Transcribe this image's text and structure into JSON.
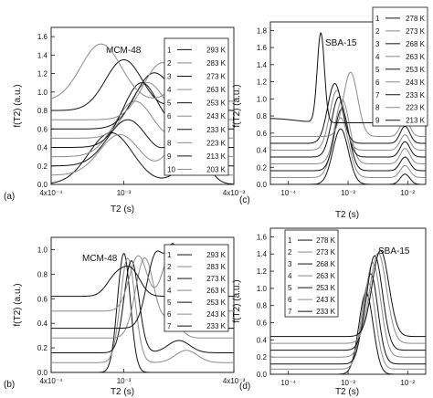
{
  "figure": {
    "chart_data": [
      {
        "type": "line",
        "panel_label": "(a)",
        "title": "MCM-48",
        "xlabel": "T2  (s)",
        "ylabel": "f(T2)  (a.u.)",
        "x_scale": "log",
        "xlim": [
          0.0004,
          0.004
        ],
        "ylim": [
          0.0,
          1.7
        ],
        "x_ticks": [
          0.0004,
          0.001,
          0.004
        ],
        "x_tick_labels": [
          "4x10⁻⁴",
          "10⁻³",
          "4x10⁻³"
        ],
        "y_ticks": [
          0.0,
          0.2,
          0.4,
          0.6,
          0.8,
          1.0,
          1.2,
          1.4,
          1.6
        ],
        "y_tick_labels": [
          "0.0",
          "0.2",
          "0.4",
          "0.6",
          "0.8",
          "1.0",
          "1.2",
          "1.4",
          "1.6"
        ],
        "legend_position": "top-right",
        "series": [
          {
            "id": "1",
            "label": "293 K",
            "offset": 0.0,
            "peaks": [
              [
                0.00085,
                0.56,
                0.12
              ],
              [
                0.0023,
                0.2,
                0.08
              ],
              [
                0.0027,
                0.12,
                0.05
              ]
            ]
          },
          {
            "id": "2",
            "label": "283 K",
            "offset": 0.1,
            "peaks": [
              [
                0.00095,
                0.44,
                0.11
              ],
              [
                0.002,
                0.34,
                0.07
              ],
              [
                0.0026,
                0.1,
                0.05
              ]
            ]
          },
          {
            "id": "3",
            "label": "273 K",
            "offset": 0.2,
            "peaks": [
              [
                0.00105,
                0.5,
                0.11
              ],
              [
                0.0021,
                0.3,
                0.07
              ],
              [
                0.0026,
                0.12,
                0.05
              ]
            ]
          },
          {
            "id": "4",
            "label": "263 K",
            "offset": 0.3,
            "peaks": [
              [
                0.00115,
                0.6,
                0.11
              ],
              [
                0.0022,
                0.2,
                0.08
              ],
              [
                0.0027,
                0.14,
                0.05
              ]
            ]
          },
          {
            "id": "5",
            "label": "253 K",
            "offset": 0.4,
            "peaks": [
              [
                0.00125,
                0.7,
                0.1
              ],
              [
                0.0022,
                0.22,
                0.07
              ]
            ]
          },
          {
            "id": "6",
            "label": "243 K",
            "offset": 0.5,
            "peaks": [
              [
                0.00135,
                0.6,
                0.1
              ],
              [
                0.0023,
                0.25,
                0.07
              ]
            ]
          },
          {
            "id": "7",
            "label": "233 K",
            "offset": 0.6,
            "peaks": [
              [
                0.00145,
                0.6,
                0.1
              ],
              [
                0.0022,
                0.2,
                0.07
              ]
            ]
          },
          {
            "id": "8",
            "label": "223 K",
            "offset": 0.7,
            "peaks": [
              [
                0.0016,
                0.6,
                0.1
              ],
              [
                0.0023,
                0.2,
                0.07
              ]
            ]
          },
          {
            "id": "9",
            "label": "213 K",
            "offset": 0.8,
            "peaks": [
              [
                0.001,
                0.55,
                0.1
              ],
              [
                0.0023,
                0.2,
                0.07
              ]
            ]
          },
          {
            "id": "10",
            "label": "203 K",
            "offset": 0.9,
            "peaks": [
              [
                0.00075,
                0.62,
                0.11
              ],
              [
                0.0021,
                0.2,
                0.07
              ]
            ]
          }
        ]
      },
      {
        "type": "line",
        "panel_label": "(c)",
        "title": "SBA-15",
        "xlabel": "T2  (s)",
        "ylabel": "f(T2)  (a.u.)",
        "x_scale": "log",
        "xlim": [
          5e-05,
          0.02
        ],
        "ylim": [
          0.0,
          1.9
        ],
        "x_ticks": [
          0.0001,
          0.001,
          0.01
        ],
        "x_tick_labels": [
          "10⁻⁴",
          "10⁻³",
          "10⁻²"
        ],
        "y_ticks": [
          0.0,
          0.2,
          0.4,
          0.6,
          0.8,
          1.0,
          1.2,
          1.4,
          1.6,
          1.8
        ],
        "y_tick_labels": [
          "0.0",
          "0.2",
          "0.4",
          "0.6",
          "0.8",
          "1.0",
          "1.2",
          "1.4",
          "1.6",
          "1.8"
        ],
        "legend_position": "top-right",
        "series": [
          {
            "id": "1",
            "label": "278 K",
            "offset": 0.0,
            "peaks": [
              [
                0.00075,
                0.65,
                0.13
              ],
              [
                0.009,
                0.12,
                0.08
              ]
            ]
          },
          {
            "id": "2",
            "label": "273 K",
            "offset": 0.08,
            "peaks": [
              [
                0.00075,
                0.7,
                0.13
              ],
              [
                0.009,
                0.14,
                0.08
              ]
            ]
          },
          {
            "id": "3",
            "label": "268 K",
            "offset": 0.16,
            "peaks": [
              [
                0.00078,
                0.72,
                0.12
              ],
              [
                0.009,
                0.16,
                0.08
              ]
            ]
          },
          {
            "id": "4",
            "label": "263 K",
            "offset": 0.24,
            "peaks": [
              [
                0.0008,
                0.75,
                0.12
              ],
              [
                0.009,
                0.18,
                0.08
              ]
            ]
          },
          {
            "id": "5",
            "label": "253 K",
            "offset": 0.32,
            "peaks": [
              [
                0.0007,
                0.7,
                0.12
              ],
              [
                0.009,
                0.18,
                0.08
              ]
            ]
          },
          {
            "id": "6",
            "label": "243 K",
            "offset": 0.4,
            "peaks": [
              [
                0.00065,
                0.7,
                0.12
              ],
              [
                0.009,
                0.18,
                0.08
              ]
            ]
          },
          {
            "id": "7",
            "label": "233 K",
            "offset": 0.48,
            "peaks": [
              [
                0.0006,
                0.7,
                0.12
              ],
              [
                0.009,
                0.2,
                0.08
              ]
            ]
          },
          {
            "id": "8",
            "label": "223 K",
            "offset": 0.56,
            "peaks": [
              [
                0.0011,
                0.75,
                0.12
              ],
              [
                0.009,
                0.2,
                0.08
              ]
            ]
          },
          {
            "id": "9",
            "label": "213 K",
            "offset": 0.72,
            "peaks": [
              [
                0.00035,
                1.05,
                0.06
              ],
              [
                5e-05,
                0.05,
                0.4
              ]
            ]
          }
        ]
      },
      {
        "type": "line",
        "panel_label": "(b)",
        "title": "MCM-48",
        "xlabel": "T2  (s)",
        "ylabel": "f(T2)  (a.u.)",
        "x_scale": "log",
        "xlim": [
          0.0004,
          0.004
        ],
        "ylim": [
          0.0,
          1.1
        ],
        "x_ticks": [
          0.0004,
          0.001,
          0.004
        ],
        "x_tick_labels": [
          "4x10⁻⁴",
          "10⁻³",
          "4x10⁻³"
        ],
        "y_ticks": [
          0.0,
          0.2,
          0.4,
          0.6,
          0.8,
          1.0
        ],
        "y_tick_labels": [
          "0.0",
          "0.2",
          "0.4",
          "0.6",
          "0.8",
          "1.0"
        ],
        "legend_position": "top-right",
        "series": [
          {
            "id": "1",
            "label": "293 K",
            "offset": 0.0,
            "peaks": [
              [
                0.001,
                0.97,
                0.035
              ]
            ]
          },
          {
            "id": "2",
            "label": "283 K",
            "offset": 0.08,
            "peaks": [
              [
                0.00105,
                0.85,
                0.04
              ],
              [
                0.0022,
                0.1,
                0.06
              ]
            ]
          },
          {
            "id": "3",
            "label": "273 K",
            "offset": 0.16,
            "peaks": [
              [
                0.0011,
                0.75,
                0.04
              ],
              [
                0.002,
                0.1,
                0.06
              ]
            ]
          },
          {
            "id": "4",
            "label": "263 K",
            "offset": 0.28,
            "peaks": [
              [
                0.0013,
                0.65,
                0.05
              ],
              [
                0.0018,
                0.15,
                0.05
              ]
            ]
          },
          {
            "id": "5",
            "label": "253 K",
            "offset": 0.36,
            "peaks": [
              [
                0.0015,
                0.6,
                0.05
              ],
              [
                0.0019,
                0.6,
                0.04
              ]
            ]
          },
          {
            "id": "6",
            "label": "243 K",
            "offset": 0.5,
            "peaks": [
              [
                0.0012,
                0.45,
                0.05
              ],
              [
                0.0018,
                0.45,
                0.05
              ]
            ]
          },
          {
            "id": "7",
            "label": "233 K",
            "offset": 0.62,
            "peaks": [
              [
                0.0009,
                0.15,
                0.05
              ],
              [
                0.0011,
                0.2,
                0.05
              ]
            ]
          }
        ]
      },
      {
        "type": "line",
        "panel_label": "(d)",
        "title": "SBA-15",
        "xlabel": "T2  (s)",
        "ylabel": "f(T2)  (a.u.)",
        "x_scale": "log",
        "xlim": [
          5e-05,
          0.02
        ],
        "ylim": [
          0.0,
          1.7
        ],
        "x_ticks": [
          0.0001,
          0.001,
          0.01
        ],
        "x_tick_labels": [
          "10⁻⁴",
          "10⁻³",
          "10⁻²"
        ],
        "y_ticks": [
          0.0,
          0.2,
          0.4,
          0.6,
          0.8,
          1.0,
          1.2,
          1.4,
          1.6
        ],
        "y_tick_labels": [
          "0.0",
          "0.2",
          "0.4",
          "0.6",
          "0.8",
          "1.0",
          "1.2",
          "1.4",
          "1.6"
        ],
        "legend_position": "top-left",
        "series": [
          {
            "id": "1",
            "label": "278 K",
            "offset": 0.0,
            "peaks": [
              [
                0.002,
                0.95,
                0.12
              ]
            ]
          },
          {
            "id": "2",
            "label": "273 K",
            "offset": 0.06,
            "peaks": [
              [
                0.0022,
                1.0,
                0.12
              ]
            ]
          },
          {
            "id": "3",
            "label": "268 K",
            "offset": 0.12,
            "peaks": [
              [
                0.0024,
                1.05,
                0.12
              ]
            ]
          },
          {
            "id": "4",
            "label": "263 K",
            "offset": 0.2,
            "peaks": [
              [
                0.0026,
                1.1,
                0.13
              ]
            ]
          },
          {
            "id": "5",
            "label": "253 K",
            "offset": 0.28,
            "peaks": [
              [
                0.0028,
                1.1,
                0.13
              ]
            ]
          },
          {
            "id": "6",
            "label": "243 K",
            "offset": 0.36,
            "peaks": [
              [
                0.0032,
                1.05,
                0.14
              ]
            ]
          },
          {
            "id": "7",
            "label": "233 K",
            "offset": 0.44,
            "peaks": [
              [
                0.0035,
                1.0,
                0.14
              ]
            ]
          }
        ]
      }
    ]
  }
}
